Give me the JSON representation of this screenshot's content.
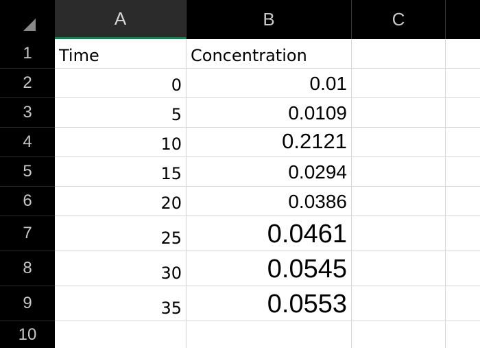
{
  "column_headers": [
    "A",
    "B",
    "C"
  ],
  "row_headers": [
    "1",
    "2",
    "3",
    "4",
    "5",
    "6",
    "7",
    "8",
    "9",
    "10"
  ],
  "columns": {
    "A_header": "Time",
    "B_header": "Concentration"
  },
  "rows": [
    {
      "time": "0",
      "concentration": "0.01"
    },
    {
      "time": "5",
      "concentration": "0.0109"
    },
    {
      "time": "10",
      "concentration": "0.2121"
    },
    {
      "time": "15",
      "concentration": "0.0294"
    },
    {
      "time": "20",
      "concentration": "0.0386"
    },
    {
      "time": "25",
      "concentration": "0.0461"
    },
    {
      "time": "30",
      "concentration": "0.0545"
    },
    {
      "time": "35",
      "concentration": "0.0553"
    }
  ],
  "colors": {
    "header_background": "#000000",
    "selected_column_accent": "#1f7a4d",
    "grid_lines": "#d4d4d4"
  },
  "icons": {
    "select_all": "select-all-triangle-icon"
  }
}
